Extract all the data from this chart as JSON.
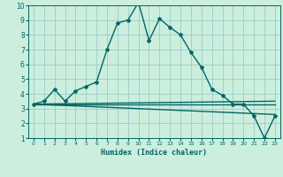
{
  "xlabel": "Humidex (Indice chaleur)",
  "ylabel": "",
  "background_color": "#cceedd",
  "grid_color": "#99cccc",
  "line_color": "#006666",
  "xlim": [
    -0.5,
    23.5
  ],
  "ylim": [
    1,
    10
  ],
  "xticks": [
    0,
    1,
    2,
    3,
    4,
    5,
    6,
    7,
    8,
    9,
    10,
    11,
    12,
    13,
    14,
    15,
    16,
    17,
    18,
    19,
    20,
    21,
    22,
    23
  ],
  "yticks": [
    1,
    2,
    3,
    4,
    5,
    6,
    7,
    8,
    9,
    10
  ],
  "lines": [
    {
      "x": [
        0,
        1,
        2,
        3,
        4,
        5,
        6,
        7,
        8,
        9,
        10,
        11,
        12,
        13,
        14,
        15,
        16,
        17,
        18,
        19,
        20,
        21,
        22,
        23
      ],
      "y": [
        3.3,
        3.5,
        4.3,
        3.5,
        4.2,
        4.5,
        4.8,
        7.0,
        8.8,
        9.0,
        10.2,
        7.6,
        9.1,
        8.5,
        8.0,
        6.8,
        5.8,
        4.3,
        3.9,
        3.3,
        3.3,
        2.5,
        1.0,
        2.5
      ],
      "marker": true
    },
    {
      "x": [
        0,
        23
      ],
      "y": [
        3.3,
        2.6
      ],
      "marker": false
    },
    {
      "x": [
        0,
        23
      ],
      "y": [
        3.3,
        3.3
      ],
      "marker": false
    },
    {
      "x": [
        0,
        23
      ],
      "y": [
        3.3,
        3.5
      ],
      "marker": false
    }
  ]
}
